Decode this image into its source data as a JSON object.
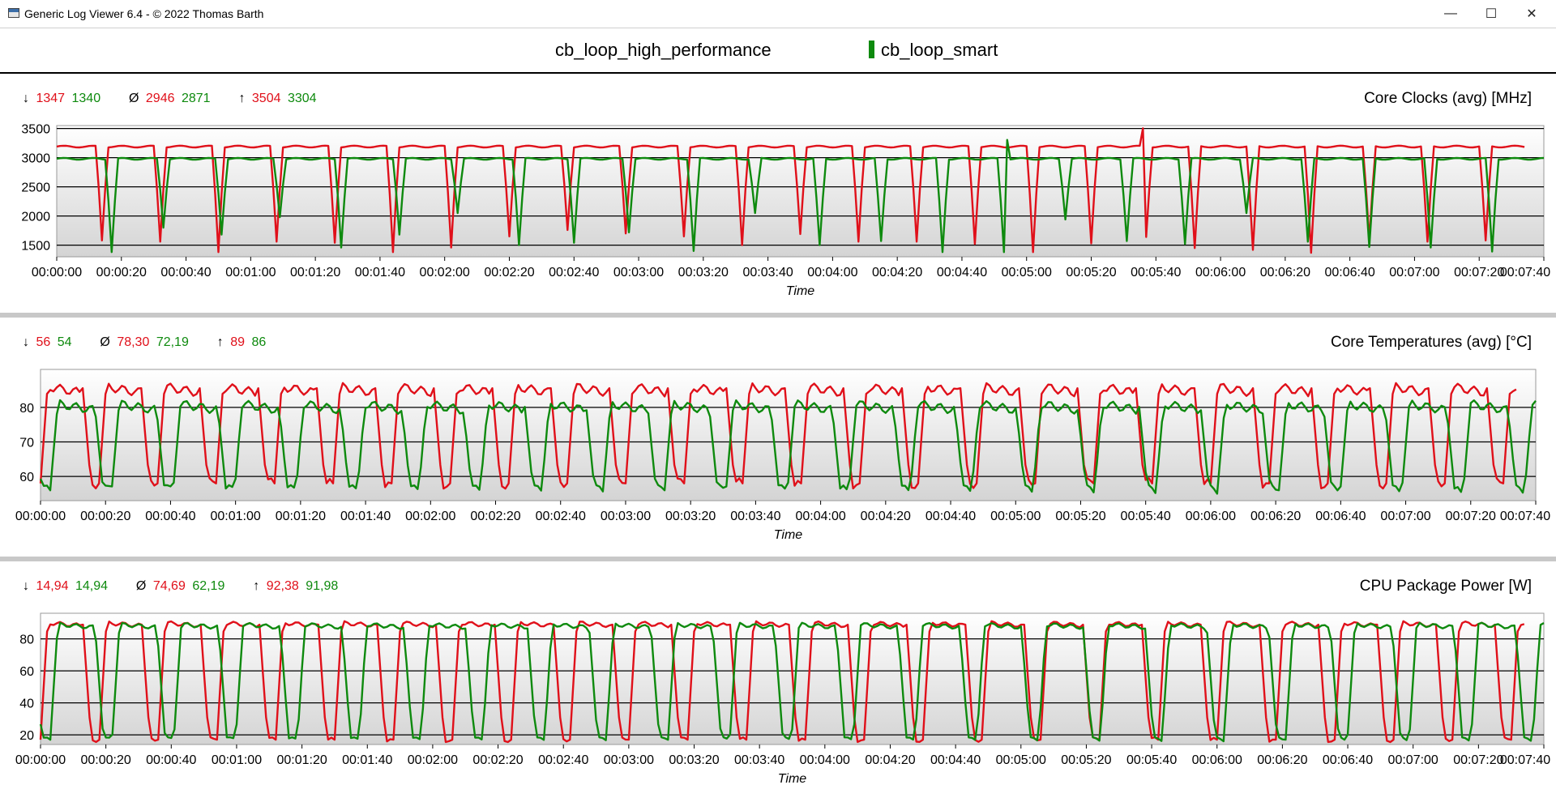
{
  "window": {
    "title": "Generic Log Viewer 6.4 - © 2022 Thomas Barth",
    "minimize_glyph": "—",
    "maximize_glyph": "☐",
    "close_glyph": "✕"
  },
  "legend": [
    {
      "name": "cb_loop_high_performance",
      "color": "#e0101a"
    },
    {
      "name": "cb_loop_smart",
      "color": "#0e8a0e"
    }
  ],
  "colors": {
    "series_a": "#e0101a",
    "series_b": "#0e8a0e",
    "grid": "#000000"
  },
  "chart_data": [
    {
      "type": "line",
      "title": "Core Clocks (avg) [MHz]",
      "xlabel": "Time",
      "xlim_seconds": [
        0,
        460
      ],
      "x_tick_labels": [
        "00:00:00",
        "00:00:20",
        "00:00:40",
        "00:01:00",
        "00:01:20",
        "00:01:40",
        "00:02:00",
        "00:02:20",
        "00:02:40",
        "00:03:00",
        "00:03:20",
        "00:03:40",
        "00:04:00",
        "00:04:20",
        "00:04:40",
        "00:05:00",
        "00:05:20",
        "00:05:40",
        "00:06:00",
        "00:06:20",
        "00:06:40",
        "00:07:00",
        "00:07:20",
        "00:07:40"
      ],
      "y_ticks": [
        1500,
        2000,
        2500,
        3000,
        3500
      ],
      "ylim": [
        1300,
        3550
      ],
      "grid": true,
      "stats": {
        "min": [
          "1347",
          "1340"
        ],
        "avg": [
          "2946",
          "2871"
        ],
        "max": [
          "3504",
          "3304"
        ]
      },
      "series": [
        {
          "name": "cb_loop_high_performance",
          "color": "#e0101a",
          "baseline": 3190,
          "dips": [
            [
              14,
              1580
            ],
            [
              32,
              1560
            ],
            [
              50,
              1380
            ],
            [
              68,
              1560
            ],
            [
              86,
              1540
            ],
            [
              104,
              1380
            ],
            [
              122,
              1460
            ],
            [
              140,
              1650
            ],
            [
              158,
              1760
            ],
            [
              176,
              1700
            ],
            [
              194,
              1650
            ],
            [
              212,
              1500
            ],
            [
              230,
              1690
            ],
            [
              248,
              1560
            ],
            [
              266,
              1560
            ],
            [
              284,
              1520
            ],
            [
              302,
              1380
            ],
            [
              320,
              1530
            ],
            [
              337,
              1640
            ],
            [
              352,
              1450
            ],
            [
              370,
              1420
            ],
            [
              388,
              1370
            ],
            [
              406,
              1580
            ],
            [
              424,
              1560
            ],
            [
              442,
              1580
            ]
          ],
          "spikes": [
            [
              336,
              3504
            ]
          ],
          "end": 454
        },
        {
          "name": "cb_loop_smart",
          "color": "#0e8a0e",
          "baseline": 2980,
          "dips": [
            [
              17,
              1380
            ],
            [
              33,
              1800
            ],
            [
              51,
              1680
            ],
            [
              69,
              1980
            ],
            [
              88,
              1460
            ],
            [
              106,
              1680
            ],
            [
              124,
              2050
            ],
            [
              143,
              1500
            ],
            [
              160,
              1540
            ],
            [
              177,
              1720
            ],
            [
              197,
              1400
            ],
            [
              216,
              2050
            ],
            [
              236,
              1500
            ],
            [
              255,
              1570
            ],
            [
              274,
              1380
            ],
            [
              293,
              1380
            ],
            [
              312,
              1940
            ],
            [
              331,
              1570
            ],
            [
              349,
              1520
            ],
            [
              368,
              2050
            ],
            [
              387,
              1560
            ],
            [
              406,
              1470
            ],
            [
              425,
              1460
            ],
            [
              444,
              1390
            ]
          ],
          "spikes": [
            [
              294,
              3304
            ]
          ],
          "end": 460
        }
      ]
    },
    {
      "type": "line",
      "title": "Core Temperatures (avg) [°C]",
      "xlabel": "Time",
      "xlim_seconds": [
        0,
        460
      ],
      "x_tick_labels": [
        "00:00:00",
        "00:00:20",
        "00:00:40",
        "00:01:00",
        "00:01:20",
        "00:01:40",
        "00:02:00",
        "00:02:20",
        "00:02:40",
        "00:03:00",
        "00:03:20",
        "00:03:40",
        "00:04:00",
        "00:04:20",
        "00:04:40",
        "00:05:00",
        "00:05:20",
        "00:05:40",
        "00:06:00",
        "00:06:20",
        "00:06:40",
        "00:07:00",
        "00:07:20",
        "00:07:40"
      ],
      "y_ticks": [
        60,
        70,
        80
      ],
      "ylim": [
        53,
        91
      ],
      "grid": true,
      "stats": {
        "min": [
          "56",
          "54"
        ],
        "avg": [
          "78,30",
          "72,19"
        ],
        "max": [
          "89",
          "86"
        ]
      },
      "series": [
        {
          "name": "cb_loop_high_performance",
          "color": "#e0101a",
          "low": 58,
          "high": 86,
          "period": 18,
          "offset": 0,
          "end": 454
        },
        {
          "name": "cb_loop_smart",
          "color": "#0e8a0e",
          "low": 56,
          "high": 81,
          "period": 18.9,
          "offset": 3,
          "end": 460
        }
      ]
    },
    {
      "type": "line",
      "title": "CPU Package Power [W]",
      "xlabel": "Time",
      "xlim_seconds": [
        0,
        460
      ],
      "x_tick_labels": [
        "00:00:00",
        "00:00:20",
        "00:00:40",
        "00:01:00",
        "00:01:20",
        "00:01:40",
        "00:02:00",
        "00:02:20",
        "00:02:40",
        "00:03:00",
        "00:03:20",
        "00:03:40",
        "00:04:00",
        "00:04:20",
        "00:04:40",
        "00:05:00",
        "00:05:20",
        "00:05:40",
        "00:06:00",
        "00:06:20",
        "00:06:40",
        "00:07:00",
        "00:07:20",
        "00:07:40"
      ],
      "y_ticks": [
        20,
        40,
        60,
        80
      ],
      "ylim": [
        14,
        96
      ],
      "grid": true,
      "stats": {
        "min": [
          "14,94",
          "14,94"
        ],
        "avg": [
          "74,69",
          "62,19"
        ],
        "max": [
          "92,38",
          "91,98"
        ]
      },
      "series": [
        {
          "name": "cb_loop_high_performance",
          "color": "#e0101a",
          "low": 17,
          "high": 90,
          "period": 18,
          "offset": 0,
          "end": 454
        },
        {
          "name": "cb_loop_smart",
          "color": "#0e8a0e",
          "low": 17,
          "high": 89,
          "period": 18.9,
          "offset": 3,
          "end": 460
        }
      ]
    }
  ]
}
